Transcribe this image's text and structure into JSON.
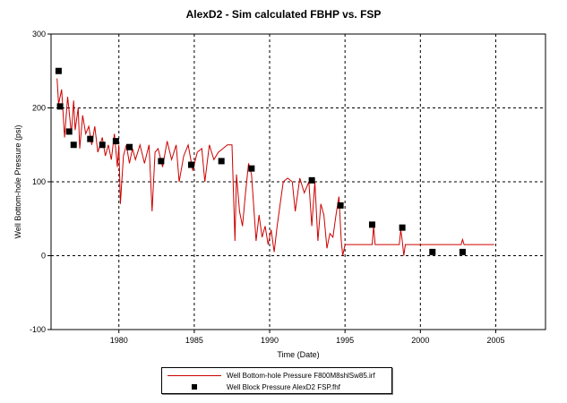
{
  "chart_data": {
    "type": "line",
    "title": "AlexD2 - Sim calculated FBHP vs. FSP",
    "xlabel": "Time (Date)",
    "ylabel": "Well Bottom-hole Pressure (psi)",
    "xlim": [
      1975.5,
      2008.3
    ],
    "ylim": [
      -100,
      300
    ],
    "x_ticks": [
      1980,
      1985,
      1990,
      1995,
      2000,
      2005
    ],
    "y_ticks": [
      -100,
      0,
      100,
      200,
      300
    ],
    "grid": "dashed",
    "legend_position": "bottom-center",
    "series": [
      {
        "name": "Well Bottom-hole Pressure F800M8shlSw85.irf",
        "style": "line",
        "color": "#cc0000",
        "x": [
          1975.9,
          1976.0,
          1976.2,
          1976.4,
          1976.6,
          1976.7,
          1976.85,
          1977.0,
          1977.1,
          1977.3,
          1977.4,
          1977.6,
          1977.8,
          1978.0,
          1978.2,
          1978.4,
          1978.6,
          1978.9,
          1979.1,
          1979.3,
          1979.5,
          1979.7,
          1979.9,
          1980.0,
          1980.1,
          1980.3,
          1980.5,
          1980.7,
          1980.9,
          1981.1,
          1981.4,
          1981.7,
          1982.0,
          1982.2,
          1982.4,
          1982.6,
          1982.9,
          1983.2,
          1983.5,
          1983.8,
          1984.0,
          1984.3,
          1984.6,
          1984.9,
          1985.2,
          1985.5,
          1985.7,
          1986.0,
          1986.3,
          1986.6,
          1986.9,
          1987.2,
          1987.5,
          1987.7,
          1987.8,
          1988.0,
          1988.2,
          1988.4,
          1988.6,
          1988.8,
          1988.9,
          1989.1,
          1989.3,
          1989.5,
          1989.7,
          1989.9,
          1990.1,
          1990.3,
          1990.5,
          1990.7,
          1990.9,
          1991.2,
          1991.5,
          1991.7,
          1992.0,
          1992.3,
          1992.6,
          1992.8,
          1993.0,
          1993.2,
          1993.4,
          1993.6,
          1993.8,
          1994.0,
          1994.2,
          1994.4,
          1994.6,
          1994.75,
          1994.85,
          1995.0,
          1996.0,
          1996.8,
          1996.9,
          1997.0,
          1997.5,
          1998.0,
          1998.6,
          1998.7,
          1998.8,
          1998.9,
          1999.0,
          1999.5,
          2000.0,
          2001.0,
          2002.0,
          2002.7,
          2002.8,
          2002.9,
          2003.0,
          2003.5,
          2004.0,
          2004.9
        ],
        "y": [
          240,
          205,
          225,
          160,
          215,
          195,
          165,
          210,
          170,
          200,
          145,
          190,
          165,
          175,
          150,
          175,
          140,
          160,
          135,
          150,
          130,
          165,
          120,
          150,
          70,
          135,
          150,
          125,
          145,
          130,
          150,
          125,
          150,
          60,
          140,
          145,
          120,
          155,
          130,
          150,
          100,
          135,
          150,
          115,
          140,
          145,
          100,
          150,
          130,
          140,
          145,
          150,
          150,
          20,
          110,
          60,
          40,
          85,
          125,
          110,
          80,
          20,
          55,
          25,
          40,
          15,
          35,
          5,
          40,
          70,
          100,
          105,
          100,
          60,
          105,
          85,
          100,
          40,
          100,
          20,
          70,
          55,
          10,
          30,
          25,
          55,
          80,
          20,
          0,
          15,
          15,
          15,
          40,
          15,
          15,
          15,
          15,
          35,
          20,
          0,
          15,
          15,
          15,
          15,
          15,
          15,
          22,
          15,
          15,
          15,
          15,
          15
        ]
      },
      {
        "name": "Well Block Pressure AlexD2 FSP.fhf",
        "style": "marker",
        "color": "#000000",
        "x": [
          1976.0,
          1976.1,
          1976.7,
          1977.0,
          1978.1,
          1978.9,
          1979.8,
          1980.7,
          1982.8,
          1984.8,
          1986.8,
          1988.8,
          1992.8,
          1994.7,
          1996.8,
          1998.8,
          2000.8,
          2002.8
        ],
        "y": [
          250,
          202,
          168,
          150,
          158,
          150,
          155,
          147,
          128,
          123,
          128,
          118,
          102,
          68,
          42,
          38,
          5,
          5
        ]
      }
    ]
  }
}
